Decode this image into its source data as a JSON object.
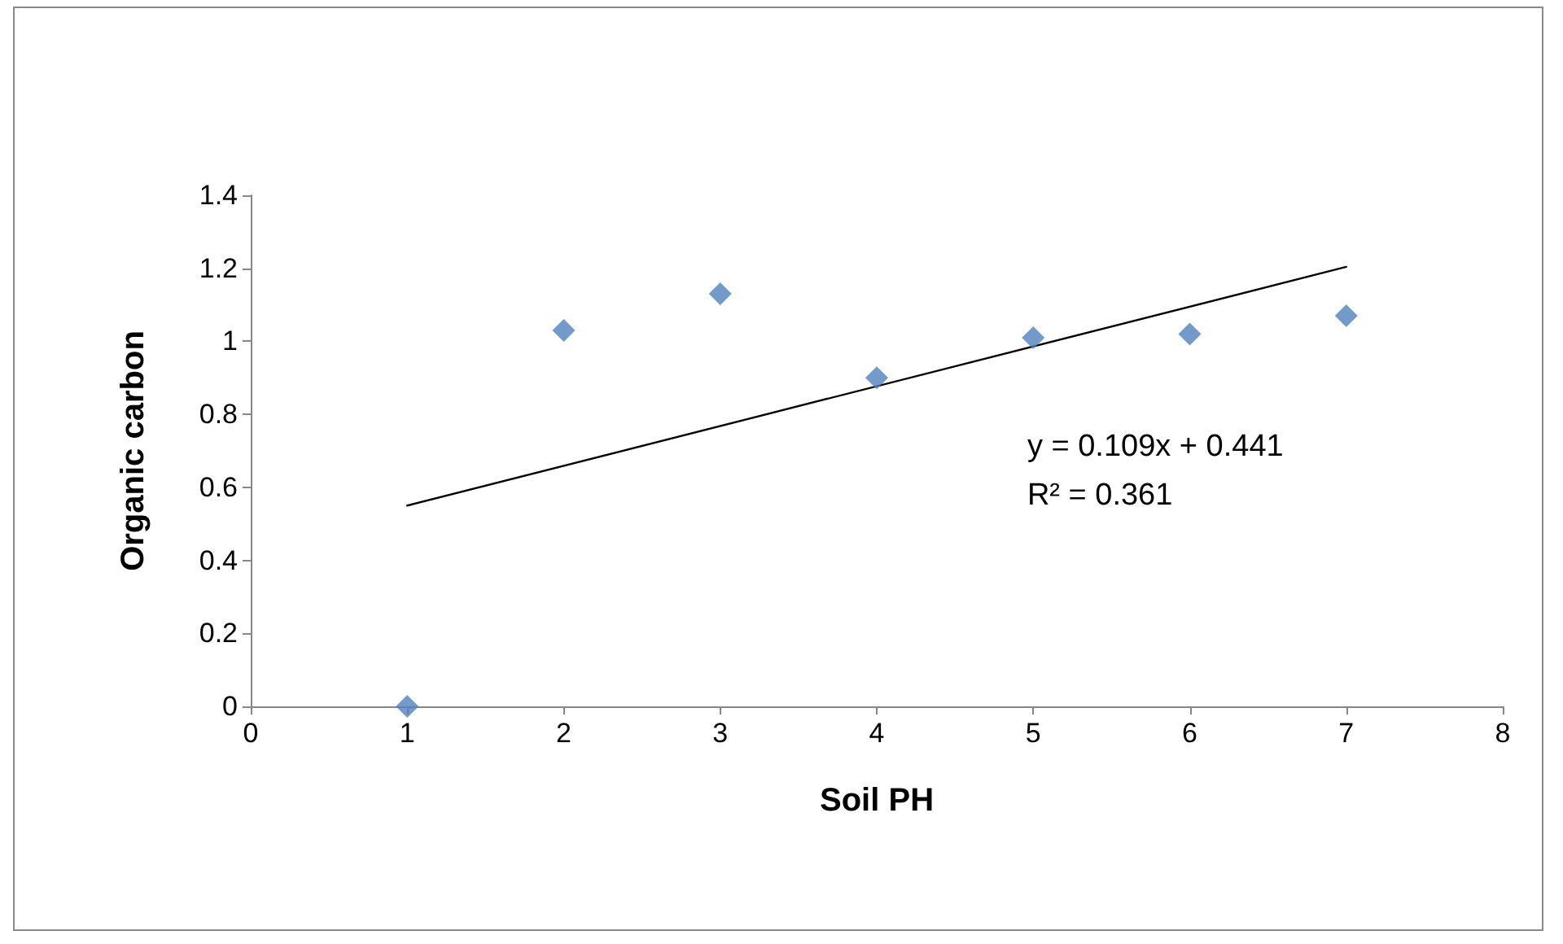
{
  "chart_data": {
    "type": "scatter",
    "xlabel": "Soil PH",
    "ylabel": "Organic carbon",
    "annotations": [
      "y = 0.109x + 0.441",
      "R² = 0.361"
    ],
    "series": [
      {
        "color": "#4f81bd",
        "marker": "diamond",
        "x": [
          1,
          2,
          3,
          4,
          5,
          6,
          7
        ],
        "values": [
          0,
          1.03,
          1.13,
          0.9,
          1.01,
          1.02,
          1.07
        ]
      },
      {
        "type": "line",
        "color": "#000000",
        "marker": "none",
        "line_style": "solid",
        "x": [
          1,
          7
        ],
        "values": [
          0.55,
          1.204
        ]
      }
    ],
    "xlim": [
      0,
      8
    ],
    "xticks": [
      0,
      1,
      2,
      3,
      4,
      5,
      6,
      7,
      8
    ],
    "ylim": [
      0,
      1.4
    ],
    "yticks": [
      0,
      0.2,
      0.4,
      0.6,
      0.8,
      1,
      1.2,
      1.4
    ],
    "grid": false
  }
}
